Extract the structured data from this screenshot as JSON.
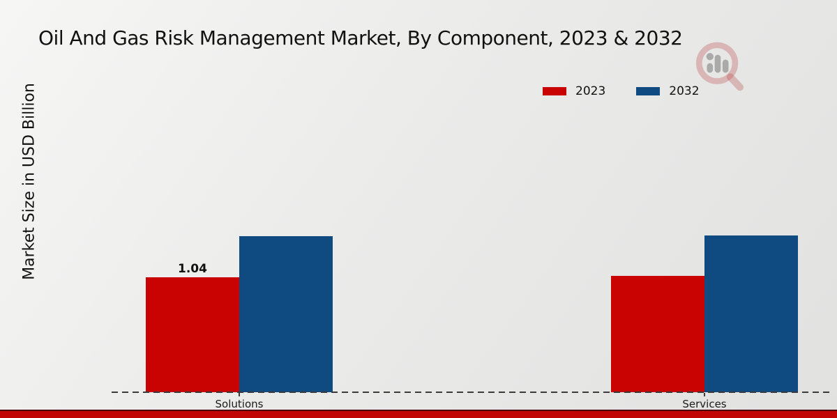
{
  "title": "Oil And Gas Risk Management Market, By Component, 2023 & 2032",
  "ylabel": "Market Size in USD Billion",
  "colors": {
    "series_2023": "#c80301",
    "series_2032": "#0f4a80",
    "footer_bar": "#c10505",
    "baseline": "#3a3a3a",
    "background": "#ebebea"
  },
  "legend": {
    "position": "upper right",
    "items": [
      {
        "label": "2023",
        "color": "#c80301"
      },
      {
        "label": "2032",
        "color": "#0f4a80"
      }
    ]
  },
  "watermark_icon": "magnifier-bar-chart-logo",
  "chart_data": {
    "type": "bar",
    "categories": [
      "Solutions",
      "Services"
    ],
    "series": [
      {
        "name": "2023",
        "color": "#c80301",
        "values": [
          1.04,
          1.05
        ]
      },
      {
        "name": "2032",
        "color": "#0f4a80",
        "values": [
          1.41,
          1.42
        ]
      }
    ],
    "title": "Oil And Gas Risk Management Market, By Component, 2023 & 2032",
    "xlabel": "",
    "ylabel": "Market Size in USD Billion",
    "ylim": [
      0,
      2.9
    ],
    "grid": false,
    "legend_position": "upper right",
    "value_label": {
      "text": "1.04",
      "series_index": 0,
      "category_index": 0
    }
  }
}
